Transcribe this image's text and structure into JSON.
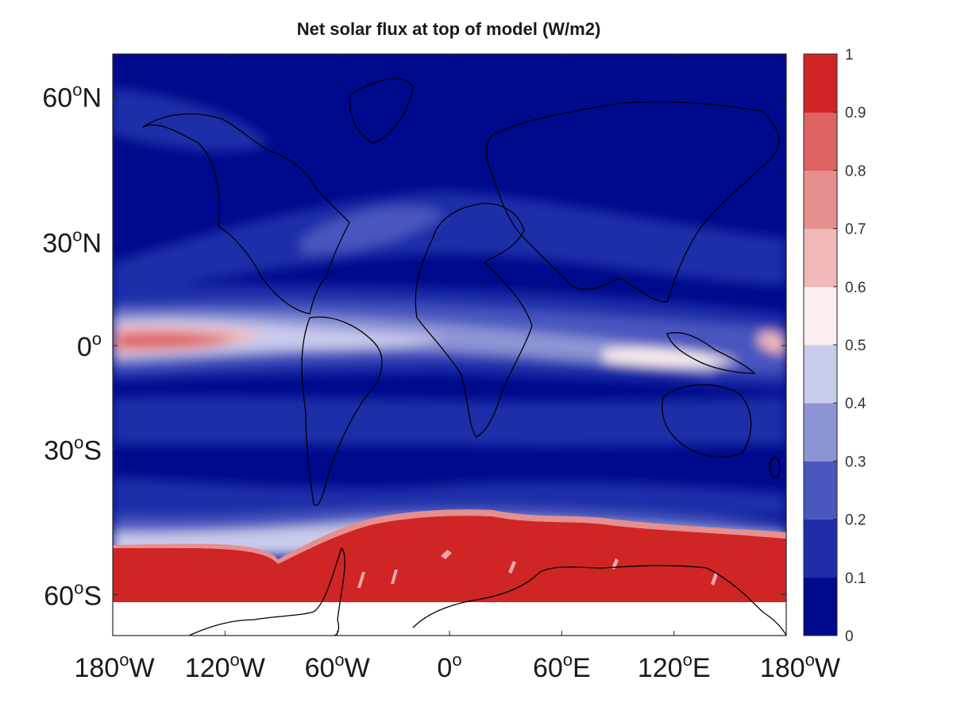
{
  "title": "Net solar flux at top of model (W/m2)",
  "map": {
    "lat_labels": [
      {
        "deg": "60",
        "hemi": "N",
        "lat": 60
      },
      {
        "deg": "30",
        "hemi": "N",
        "lat": 30
      },
      {
        "deg": "0",
        "hemi": "",
        "lat": 0
      },
      {
        "deg": "30",
        "hemi": "S",
        "lat": -30
      },
      {
        "deg": "60",
        "hemi": "S",
        "lat": -60
      }
    ],
    "lon_labels": [
      {
        "deg": "180",
        "hemi": "W",
        "lon": -180
      },
      {
        "deg": "120",
        "hemi": "W",
        "lon": -120
      },
      {
        "deg": "60",
        "hemi": "W",
        "lon": -60
      },
      {
        "deg": "0",
        "hemi": "",
        "lon": 0
      },
      {
        "deg": "60",
        "hemi": "E",
        "lon": 60
      },
      {
        "deg": "120",
        "hemi": "E",
        "lon": 120
      },
      {
        "deg": "180",
        "hemi": "W",
        "lon": 180
      }
    ]
  },
  "colorbar": {
    "ticks": [
      "0",
      "0.1",
      "0.2",
      "0.3",
      "0.4",
      "0.5",
      "0.6",
      "0.7",
      "0.8",
      "0.9",
      "1"
    ],
    "colors": [
      "#000a8c",
      "#1f2ea8",
      "#4a57bf",
      "#8d94d4",
      "#c9cbeb",
      "#fbeeee",
      "#f0b8b8",
      "#e68f8f",
      "#dd6262",
      "#d02525"
    ]
  }
}
